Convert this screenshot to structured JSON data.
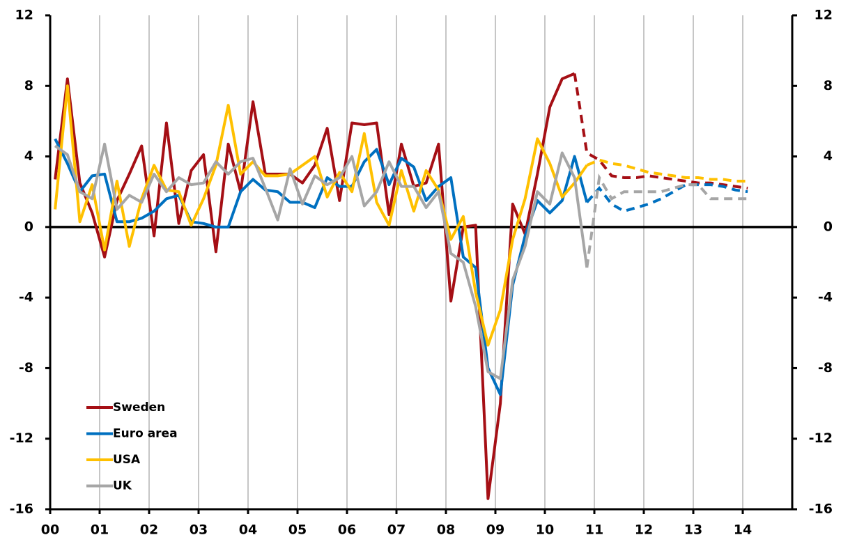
{
  "chart_data": {
    "type": "line",
    "x": [
      0.1,
      0.35,
      0.6,
      0.85,
      1.1,
      1.35,
      1.6,
      1.85,
      2.1,
      2.35,
      2.6,
      2.85,
      3.1,
      3.35,
      3.6,
      3.85,
      4.1,
      4.35,
      4.6,
      4.85,
      5.1,
      5.35,
      5.6,
      5.85,
      6.1,
      6.35,
      6.6,
      6.85,
      7.1,
      7.35,
      7.6,
      7.85,
      8.1,
      8.35,
      8.6,
      8.85,
      9.1,
      9.35,
      9.6,
      9.85,
      10.1,
      10.35,
      10.6,
      10.85,
      11.1,
      11.35,
      11.6,
      11.85,
      12.1,
      12.35,
      12.6,
      12.85,
      13.1,
      13.35,
      13.6,
      13.85,
      14.1
    ],
    "series": [
      {
        "name": "Sweden",
        "color": "#a50f15",
        "values": [
          2.7,
          8.4,
          2.5,
          0.8,
          -1.7,
          1.5,
          3.0,
          4.6,
          -0.5,
          5.9,
          0.2,
          3.2,
          4.1,
          -1.4,
          4.7,
          2.0,
          7.1,
          3.0,
          3.0,
          3.0,
          2.5,
          3.5,
          5.6,
          1.5,
          5.9,
          5.8,
          5.9,
          0.7,
          4.7,
          2.3,
          2.5,
          4.7,
          -4.2,
          0.0,
          0.1,
          -15.4,
          -10.0,
          1.3,
          -0.4,
          3.0,
          6.8,
          8.4,
          8.7,
          null,
          null,
          null,
          null,
          null,
          null,
          null,
          null,
          null,
          null,
          null,
          null,
          null,
          null
        ],
        "forecast_values": [
          null,
          null,
          null,
          null,
          null,
          null,
          null,
          null,
          null,
          null,
          null,
          null,
          null,
          null,
          null,
          null,
          null,
          null,
          null,
          null,
          null,
          null,
          null,
          null,
          null,
          null,
          null,
          null,
          null,
          null,
          null,
          null,
          null,
          null,
          null,
          null,
          null,
          null,
          null,
          null,
          null,
          null,
          8.7,
          4.2,
          3.8,
          2.9,
          2.8,
          2.8,
          2.9,
          2.8,
          2.7,
          2.6,
          2.5,
          2.5,
          2.4,
          2.3,
          2.2
        ]
      },
      {
        "name": "Euro area",
        "color": "#0070c0",
        "values": [
          5.0,
          3.6,
          2.0,
          2.9,
          3.0,
          0.3,
          0.3,
          0.5,
          0.9,
          1.6,
          1.8,
          0.3,
          0.2,
          0.0,
          0.0,
          2.0,
          2.7,
          2.1,
          2.0,
          1.4,
          1.4,
          1.1,
          2.8,
          2.3,
          2.3,
          3.7,
          4.4,
          2.4,
          3.9,
          3.4,
          1.5,
          2.3,
          2.8,
          -1.7,
          -2.3,
          -8.0,
          -9.5,
          -3.3,
          -0.5,
          1.5,
          0.8,
          1.5,
          4.0,
          1.4,
          null,
          null,
          null,
          null,
          null,
          null,
          null,
          null,
          null,
          null,
          null,
          null,
          null
        ],
        "forecast_values": [
          null,
          null,
          null,
          null,
          null,
          null,
          null,
          null,
          null,
          null,
          null,
          null,
          null,
          null,
          null,
          null,
          null,
          null,
          null,
          null,
          null,
          null,
          null,
          null,
          null,
          null,
          null,
          null,
          null,
          null,
          null,
          null,
          null,
          null,
          null,
          null,
          null,
          null,
          null,
          null,
          null,
          null,
          null,
          1.4,
          2.2,
          1.3,
          0.9,
          1.1,
          1.3,
          1.6,
          2.0,
          2.4,
          2.4,
          2.4,
          2.3,
          2.1,
          2.0
        ]
      },
      {
        "name": "USA",
        "color": "#ffc000",
        "values": [
          1.0,
          8.0,
          0.3,
          2.4,
          -1.3,
          2.6,
          -1.1,
          1.6,
          3.5,
          2.1,
          2.0,
          0.1,
          1.6,
          3.5,
          6.9,
          3.0,
          3.7,
          2.9,
          2.9,
          3.0,
          3.5,
          4.0,
          1.7,
          3.1,
          2.0,
          5.3,
          1.4,
          0.1,
          3.2,
          0.9,
          3.2,
          2.1,
          -0.7,
          0.6,
          -3.7,
          -6.7,
          -4.7,
          -0.7,
          1.6,
          5.0,
          3.6,
          1.7,
          2.5,
          3.5,
          null,
          null,
          null,
          null,
          null,
          null,
          null,
          null,
          null,
          null,
          null,
          null,
          null
        ],
        "forecast_values": [
          null,
          null,
          null,
          null,
          null,
          null,
          null,
          null,
          null,
          null,
          null,
          null,
          null,
          null,
          null,
          null,
          null,
          null,
          null,
          null,
          null,
          null,
          null,
          null,
          null,
          null,
          null,
          null,
          null,
          null,
          null,
          null,
          null,
          null,
          null,
          null,
          null,
          null,
          null,
          null,
          null,
          null,
          null,
          3.5,
          3.8,
          3.6,
          3.5,
          3.3,
          3.1,
          3.0,
          2.9,
          2.8,
          2.8,
          2.7,
          2.7,
          2.6,
          2.6
        ]
      },
      {
        "name": "UK",
        "color": "#a6a6a6",
        "values": [
          4.6,
          4.1,
          2.0,
          1.6,
          4.7,
          1.0,
          1.8,
          1.4,
          3.0,
          2.0,
          2.8,
          2.4,
          2.5,
          3.7,
          3.0,
          3.7,
          3.9,
          2.2,
          0.4,
          3.3,
          1.3,
          2.9,
          2.4,
          2.8,
          4.0,
          1.2,
          2.0,
          3.7,
          2.3,
          2.3,
          1.1,
          2.0,
          -1.5,
          -2.0,
          -4.5,
          -8.2,
          -8.6,
          -3.0,
          -1.1,
          2.0,
          1.3,
          4.2,
          2.8,
          -2.3,
          null,
          null,
          null,
          null,
          null,
          null,
          null,
          null,
          null,
          null,
          null,
          null,
          null
        ],
        "forecast_values": [
          null,
          null,
          null,
          null,
          null,
          null,
          null,
          null,
          null,
          null,
          null,
          null,
          null,
          null,
          null,
          null,
          null,
          null,
          null,
          null,
          null,
          null,
          null,
          null,
          null,
          null,
          null,
          null,
          null,
          null,
          null,
          null,
          null,
          null,
          null,
          null,
          null,
          null,
          null,
          null,
          null,
          null,
          null,
          -2.3,
          2.8,
          1.6,
          2.0,
          2.0,
          2.0,
          2.0,
          2.2,
          2.4,
          2.4,
          1.6,
          1.6,
          1.6,
          1.6
        ]
      }
    ],
    "xlim": [
      0,
      15
    ],
    "xticks": [
      {
        "value": 0,
        "label": "00"
      },
      {
        "value": 1,
        "label": "01"
      },
      {
        "value": 2,
        "label": "02"
      },
      {
        "value": 3,
        "label": "03"
      },
      {
        "value": 4,
        "label": "04"
      },
      {
        "value": 5,
        "label": "05"
      },
      {
        "value": 6,
        "label": "06"
      },
      {
        "value": 7,
        "label": "07"
      },
      {
        "value": 8,
        "label": "08"
      },
      {
        "value": 9,
        "label": "09"
      },
      {
        "value": 10,
        "label": "10"
      },
      {
        "value": 11,
        "label": "11"
      },
      {
        "value": 12,
        "label": "12"
      },
      {
        "value": 13,
        "label": "13"
      },
      {
        "value": 14,
        "label": "14"
      }
    ],
    "ylim": [
      -16,
      12
    ],
    "yticks": [
      -16,
      -12,
      -8,
      -4,
      0,
      4,
      8,
      12
    ],
    "y2lim": [
      -16,
      12
    ],
    "y2ticks": [
      -16,
      -12,
      -8,
      -4,
      0,
      4,
      8,
      12
    ],
    "grid": true,
    "legend": "lower left"
  }
}
